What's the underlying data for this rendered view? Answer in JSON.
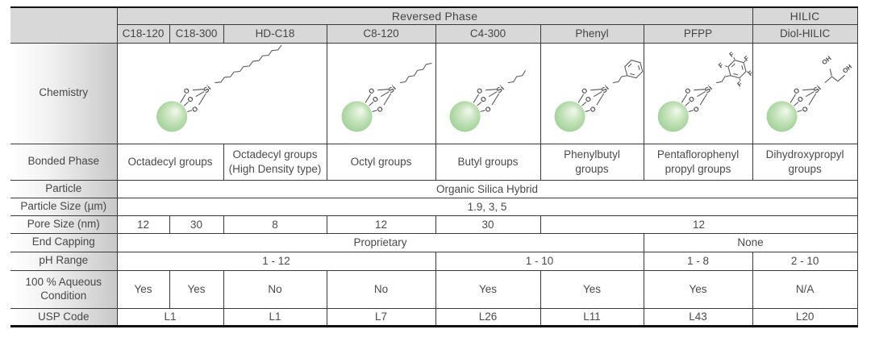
{
  "accent_colors": {
    "header_gray": "#d8d8d8",
    "sphere_green": "#9bcd92",
    "border_dark": "#111111",
    "text_gray": "#4a4a4a"
  },
  "table": {
    "group_headers": [
      {
        "label": "Reversed Phase",
        "span": 7
      },
      {
        "label": "HILIC",
        "span": 1
      }
    ],
    "columns": [
      "C18-120",
      "C18-300",
      "HD-C18",
      "C8-120",
      "C4-300",
      "Phenyl",
      "PFPP",
      "Diol-HILIC"
    ],
    "rows": [
      {
        "key": "chemistry",
        "label": "Chemistry",
        "type": "structures",
        "cells": [
          {
            "span": 3,
            "structure": "c18",
            "icon": "c18-octadecyl-chain-silica-structure"
          },
          {
            "span": 1,
            "structure": "c8",
            "icon": "c8-octyl-chain-silica-structure"
          },
          {
            "span": 1,
            "structure": "c4",
            "icon": "c4-butyl-chain-silica-structure"
          },
          {
            "span": 1,
            "structure": "phenyl",
            "icon": "phenylbutyl-silica-structure"
          },
          {
            "span": 1,
            "structure": "pfpp",
            "icon": "pentafluorophenyl-silica-structure"
          },
          {
            "span": 1,
            "structure": "diol",
            "icon": "dihydroxypropyl-silica-structure"
          }
        ]
      },
      {
        "key": "bonded_phase",
        "label": "Bonded Phase",
        "cells": [
          {
            "span": 2,
            "lines": [
              "Octadecyl groups"
            ]
          },
          {
            "span": 1,
            "lines": [
              "Octadecyl groups",
              "(High Density type)"
            ]
          },
          {
            "span": 1,
            "lines": [
              "Octyl groups"
            ]
          },
          {
            "span": 1,
            "lines": [
              "Butyl groups"
            ]
          },
          {
            "span": 1,
            "lines": [
              "Phenylbutyl",
              "groups"
            ]
          },
          {
            "span": 1,
            "lines": [
              "Pentaflorophenyl",
              "propyl groups"
            ]
          },
          {
            "span": 1,
            "lines": [
              "Dihydroxypropyl",
              "groups"
            ]
          }
        ]
      },
      {
        "key": "particle",
        "label": "Particle",
        "cells": [
          {
            "span": 8,
            "text": "Organic Silica Hybrid"
          }
        ]
      },
      {
        "key": "particle_size",
        "label": "Particle Size (µm)",
        "cells": [
          {
            "span": 8,
            "text": "1.9, 3, 5"
          }
        ]
      },
      {
        "key": "pore_size",
        "label": "Pore Size (nm)",
        "cells": [
          {
            "span": 1,
            "text": "12"
          },
          {
            "span": 1,
            "text": "30"
          },
          {
            "span": 1,
            "text": "8"
          },
          {
            "span": 1,
            "text": "12"
          },
          {
            "span": 1,
            "text": "30"
          },
          {
            "span": 3,
            "text": "12"
          }
        ]
      },
      {
        "key": "end_capping",
        "label": "End Capping",
        "cells": [
          {
            "span": 6,
            "text": "Proprietary"
          },
          {
            "span": 2,
            "text": "None"
          }
        ]
      },
      {
        "key": "ph_range",
        "label": "pH Range",
        "cells": [
          {
            "span": 4,
            "text": "1 - 12"
          },
          {
            "span": 2,
            "text": "1 - 10"
          },
          {
            "span": 1,
            "text": "1 - 8"
          },
          {
            "span": 1,
            "text": "2 - 10"
          }
        ]
      },
      {
        "key": "aqueous",
        "label": "100 % Aqueous Condition",
        "cells": [
          {
            "span": 1,
            "text": "Yes"
          },
          {
            "span": 1,
            "text": "Yes"
          },
          {
            "span": 1,
            "text": "No"
          },
          {
            "span": 1,
            "text": "No"
          },
          {
            "span": 1,
            "text": "Yes"
          },
          {
            "span": 1,
            "text": "Yes"
          },
          {
            "span": 1,
            "text": "Yes"
          },
          {
            "span": 1,
            "text": "N/A"
          }
        ]
      },
      {
        "key": "usp_code",
        "label": "USP Code",
        "cells": [
          {
            "span": 2,
            "text": "L1"
          },
          {
            "span": 1,
            "text": "L1"
          },
          {
            "span": 1,
            "text": "L7"
          },
          {
            "span": 1,
            "text": "L26"
          },
          {
            "span": 1,
            "text": "L11"
          },
          {
            "span": 1,
            "text": "L43"
          },
          {
            "span": 1,
            "text": "L20"
          }
        ]
      }
    ],
    "structure_atom_labels": {
      "silicon": "Si",
      "oxygen": "O",
      "fluorine": "F",
      "hydroxyl": "OH"
    }
  }
}
